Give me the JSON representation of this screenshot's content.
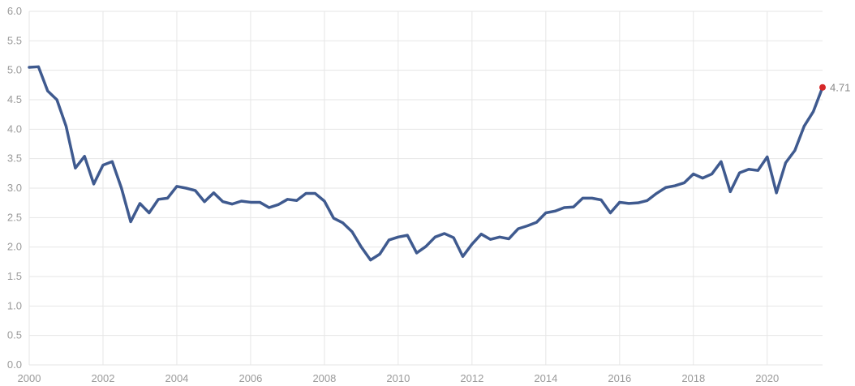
{
  "chart_data": {
    "type": "line",
    "title": "",
    "xlabel": "",
    "ylabel": "",
    "xlim": [
      2000,
      2021.5
    ],
    "ylim": [
      0,
      6
    ],
    "x_ticks": [
      2000,
      2002,
      2004,
      2006,
      2008,
      2010,
      2012,
      2014,
      2016,
      2018,
      2020
    ],
    "y_ticks": [
      0.0,
      0.5,
      1.0,
      1.5,
      2.0,
      2.5,
      3.0,
      3.5,
      4.0,
      4.5,
      5.0,
      5.5,
      6.0
    ],
    "y_tick_labels": [
      "0.0",
      "0.5",
      "1.0",
      "1.5",
      "2.0",
      "2.5",
      "3.0",
      "3.5",
      "4.0",
      "4.5",
      "5.0",
      "5.5",
      "6.0"
    ],
    "grid": true,
    "legend": "none",
    "series": [
      {
        "color": "#3f5a8f",
        "x": [
          2000.0,
          2000.25,
          2000.5,
          2000.75,
          2001.0,
          2001.25,
          2001.5,
          2001.75,
          2002.0,
          2002.25,
          2002.5,
          2002.75,
          2003.0,
          2003.25,
          2003.5,
          2003.75,
          2004.0,
          2004.25,
          2004.5,
          2004.75,
          2005.0,
          2005.25,
          2005.5,
          2005.75,
          2006.0,
          2006.25,
          2006.5,
          2006.75,
          2007.0,
          2007.25,
          2007.5,
          2007.75,
          2008.0,
          2008.25,
          2008.5,
          2008.75,
          2009.0,
          2009.25,
          2009.5,
          2009.75,
          2010.0,
          2010.25,
          2010.5,
          2010.75,
          2011.0,
          2011.25,
          2011.5,
          2011.75,
          2012.0,
          2012.25,
          2012.5,
          2012.75,
          2013.0,
          2013.25,
          2013.5,
          2013.75,
          2014.0,
          2014.25,
          2014.5,
          2014.75,
          2015.0,
          2015.25,
          2015.5,
          2015.75,
          2016.0,
          2016.25,
          2016.5,
          2016.75,
          2017.0,
          2017.25,
          2017.5,
          2017.75,
          2018.0,
          2018.25,
          2018.5,
          2018.75,
          2019.0,
          2019.25,
          2019.5,
          2019.75,
          2020.0,
          2020.25,
          2020.5,
          2020.75,
          2021.0,
          2021.25,
          2021.5
        ],
        "y": [
          5.05,
          5.06,
          4.65,
          4.5,
          4.05,
          3.34,
          3.54,
          3.07,
          3.39,
          3.45,
          3.0,
          2.43,
          2.74,
          2.58,
          2.81,
          2.83,
          3.03,
          3.0,
          2.96,
          2.77,
          2.92,
          2.77,
          2.73,
          2.78,
          2.76,
          2.76,
          2.67,
          2.72,
          2.81,
          2.79,
          2.91,
          2.91,
          2.78,
          2.49,
          2.41,
          2.26,
          2.0,
          1.78,
          1.88,
          2.12,
          2.17,
          2.2,
          1.9,
          2.01,
          2.17,
          2.23,
          2.16,
          1.84,
          2.05,
          2.22,
          2.13,
          2.17,
          2.14,
          2.31,
          2.36,
          2.42,
          2.58,
          2.61,
          2.67,
          2.68,
          2.83,
          2.83,
          2.8,
          2.58,
          2.76,
          2.74,
          2.75,
          2.79,
          2.91,
          3.01,
          3.04,
          3.09,
          3.24,
          3.17,
          3.24,
          3.45,
          2.94,
          3.26,
          3.32,
          3.3,
          3.53,
          2.92,
          3.43,
          3.64,
          4.05,
          4.3,
          4.71
        ]
      }
    ],
    "last_point_label": "4.71",
    "last_point_color": "#d62728"
  }
}
